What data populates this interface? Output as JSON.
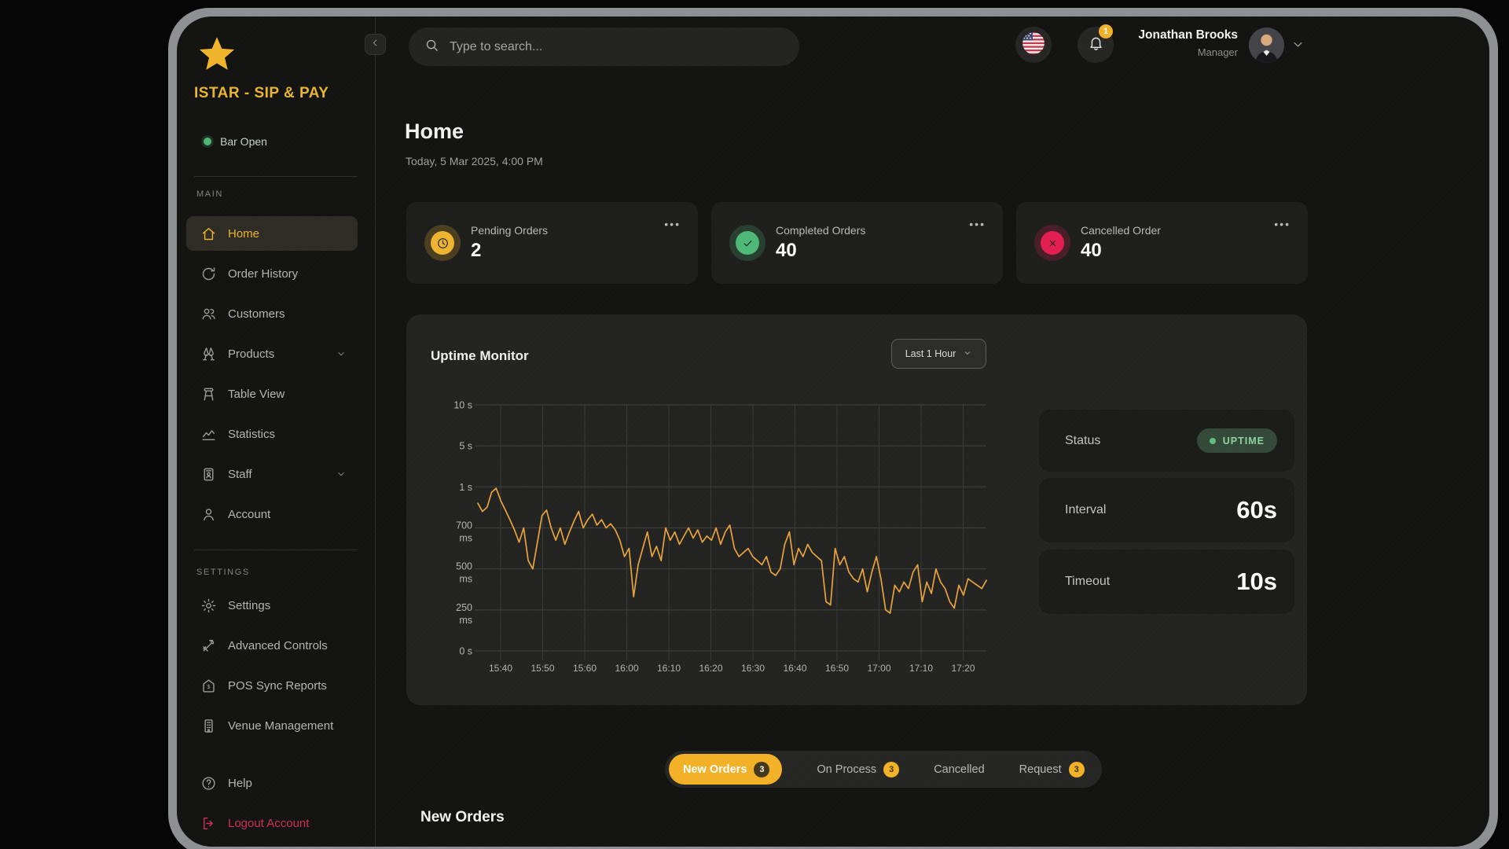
{
  "brand": {
    "title": "ISTAR - SIP & PAY",
    "status_label": "Bar Open",
    "logo_icon": "star-icon"
  },
  "sidebar": {
    "sections": [
      {
        "header": "MAIN",
        "items": [
          {
            "label": "Home",
            "icon": "home-icon",
            "active": true
          },
          {
            "label": "Order History",
            "icon": "refresh-icon"
          },
          {
            "label": "Customers",
            "icon": "users-icon"
          },
          {
            "label": "Products",
            "icon": "cheers-icon",
            "chevron": true
          },
          {
            "label": "Table View",
            "icon": "stool-icon"
          },
          {
            "label": "Statistics",
            "icon": "line-chart-icon"
          },
          {
            "label": "Staff",
            "icon": "id-badge-icon",
            "chevron": true
          },
          {
            "label": "Account",
            "icon": "user-icon"
          }
        ]
      },
      {
        "header": "SETTINGS",
        "items": [
          {
            "label": "Settings",
            "icon": "gear-icon"
          },
          {
            "label": "Advanced Controls",
            "icon": "tools-icon"
          },
          {
            "label": "POS Sync Reports",
            "icon": "dollar-house-icon"
          },
          {
            "label": "Venue Management",
            "icon": "building-icon"
          }
        ]
      }
    ],
    "footer_items": [
      {
        "label": "Help",
        "icon": "help-icon"
      },
      {
        "label": "Logout Account",
        "icon": "logout-icon",
        "danger": true
      }
    ]
  },
  "topbar": {
    "search_placeholder": "Type to search...",
    "notification_count": "1",
    "language_flag": "us-flag-icon",
    "user": {
      "name": "Jonathan Brooks",
      "role": "Manager"
    }
  },
  "page": {
    "title": "Home",
    "subtitle": "Today, 5 Mar 2025, 4:00 PM"
  },
  "stat_cards": [
    {
      "label": "Pending Orders",
      "value": "2",
      "icon": "clock-icon",
      "color": "#edb331",
      "menu": "•••"
    },
    {
      "label": "Completed Orders",
      "value": "40",
      "icon": "check-icon",
      "color": "#4db878",
      "menu": "•••"
    },
    {
      "label": "Cancelled Order",
      "value": "40",
      "icon": "x-icon",
      "color": "#e31e50",
      "menu": "•••"
    }
  ],
  "uptime": {
    "title": "Uptime Monitor",
    "range_selector": "Last 1 Hour",
    "stats": [
      {
        "label": "Status",
        "badge": "UPTIME"
      },
      {
        "label": "Interval",
        "value": "60s"
      },
      {
        "label": "Timeout",
        "value": "10s"
      }
    ],
    "badge_colors": {
      "bg": "#34493a",
      "text": "#8ed29e",
      "dot": "#63bd79"
    }
  },
  "chart_data": {
    "type": "line",
    "title": "Uptime Monitor",
    "unit": "ms",
    "line_color": "#e8a33d",
    "grid": true,
    "legend": false,
    "x_ticks": [
      "15:40",
      "15:50",
      "15:60",
      "16:00",
      "16:10",
      "16:20",
      "16:30",
      "16:40",
      "16:50",
      "17:00",
      "17:10",
      "17:20"
    ],
    "y_ticks": [
      "10 s",
      "5 s",
      "1 s",
      "700 ms",
      "500 ms",
      "250 ms",
      "0 s"
    ],
    "y_scale_stops_ms": [
      0,
      250,
      500,
      700,
      1000,
      5000,
      10000
    ],
    "values_ms": [
      880,
      820,
      850,
      960,
      990,
      900,
      830,
      760,
      690,
      630,
      700,
      540,
      500,
      630,
      790,
      830,
      700,
      640,
      700,
      620,
      680,
      750,
      820,
      700,
      760,
      800,
      720,
      760,
      700,
      730,
      690,
      640,
      560,
      600,
      330,
      520,
      600,
      680,
      560,
      610,
      540,
      700,
      640,
      680,
      620,
      660,
      700,
      650,
      690,
      630,
      660,
      640,
      700,
      620,
      680,
      720,
      600,
      560,
      580,
      600,
      560,
      540,
      520,
      560,
      480,
      460,
      500,
      620,
      680,
      520,
      600,
      560,
      620,
      580,
      560,
      540,
      300,
      280,
      600,
      520,
      560,
      480,
      440,
      420,
      500,
      360,
      480,
      560,
      440,
      250,
      230,
      400,
      360,
      420,
      380,
      480,
      520,
      300,
      420,
      350,
      500,
      420,
      380,
      300,
      260,
      400,
      340,
      440,
      420,
      400,
      380,
      430
    ]
  },
  "order_tabs": [
    {
      "label": "New Orders",
      "count": "3",
      "active": true
    },
    {
      "label": "On Process",
      "count": "3"
    },
    {
      "label": "Cancelled"
    },
    {
      "label": "Request",
      "count": "3"
    }
  ],
  "section_heading": "New Orders",
  "colors": {
    "accent": "#f0b02a",
    "success": "#4db878",
    "danger": "#e31e50",
    "logout": "#cf3054"
  }
}
